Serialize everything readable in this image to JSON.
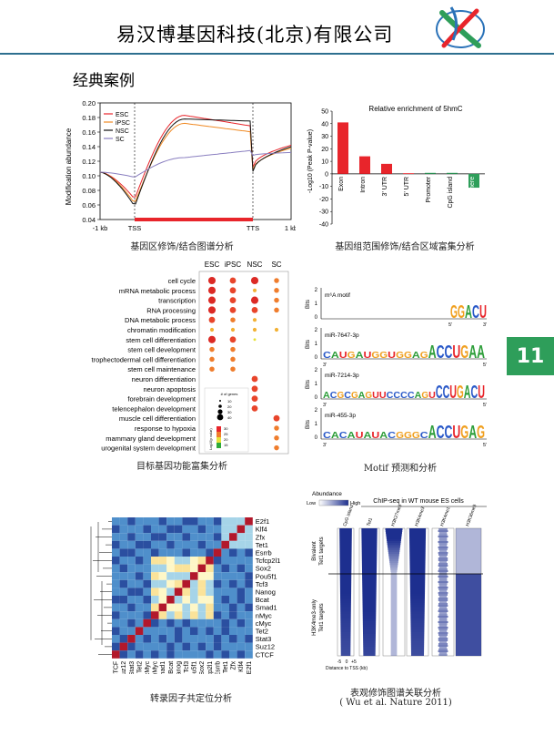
{
  "header": {
    "company": "易汉博基因科技(北京)有限公司",
    "section": "经典案例"
  },
  "page_number": "11",
  "captions": {
    "c1": "基因区修饰/结合图谱分析",
    "c2": "基因组范围修饰/结合区域富集分析",
    "c3": "目标基因功能富集分析",
    "c4": "Motif 预测和分析",
    "c5": "转录因子共定位分析",
    "c6": "表观修饰图谱关联分析",
    "c6b": "( Wu et al. Nature 2011)"
  },
  "chart_data": [
    {
      "type": "line",
      "title": "",
      "ylabel": "Modification abundance",
      "ylim": [
        0.04,
        0.2
      ],
      "yticks": [
        "0.20",
        "0.18",
        "0.16",
        "0.14",
        "0.12",
        "0.10",
        "0.08",
        "0.06",
        "0.04"
      ],
      "xticks": [
        "-1 kb",
        "TSS",
        "TTS",
        "1 kb"
      ],
      "series": [
        {
          "name": "ESC",
          "color": "#e8252b"
        },
        {
          "name": "iPSC",
          "color": "#f08a24"
        },
        {
          "name": "NSC",
          "color": "#111111"
        },
        {
          "name": "SC",
          "color": "#8a7fc0"
        }
      ]
    },
    {
      "type": "bar",
      "title": "Relative enrichment of 5hmC",
      "ylabel": "-Log10 (Peak P-value)",
      "ylim": [
        -40,
        50
      ],
      "yticks": [
        "50",
        "40",
        "30",
        "20",
        "10",
        "0",
        "-10",
        "-20",
        "-30",
        "-40"
      ],
      "categories": [
        "Exon",
        "Intron",
        "3' UTR",
        "5' UTR",
        "Promoter",
        "CpG island",
        "Centromere"
      ],
      "values": [
        41,
        14,
        8,
        0.5,
        0.8,
        0.8,
        -11
      ],
      "colors": [
        "#e8252b",
        "#e8252b",
        "#e8252b",
        "#e8252b",
        "#2e9e5a",
        "#2e9e5a",
        "#2e9e5a"
      ]
    },
    {
      "type": "scatter",
      "columns": [
        "ESC",
        "iPSC",
        "NSC",
        "SC"
      ],
      "rows": [
        "cell cycle",
        "mRNA metabolic process",
        "transcription",
        "RNA processing",
        "DNA metabolic process",
        "chromatin modification",
        "stem cell differentiation",
        "stem cell development",
        "trophectodermal cell differentiation",
        "stem cell maintenance",
        "neuron differentiation",
        "neuron apoptosis",
        "forebrain development",
        "telencephalon development",
        "muscle cell differentiation",
        "response to hypoxia",
        "mammary gland development",
        "urogenital system development"
      ],
      "legend_size_title": "# of genes",
      "legend_size": [
        "10",
        "20",
        "30",
        "40"
      ],
      "legend_color_title": "Log10(p value)",
      "legend_color": [
        "30",
        "25",
        "20",
        "15"
      ]
    },
    {
      "type": "table",
      "title": "",
      "motifs": [
        {
          "name": "m⁶A motif",
          "seq": "GGACU",
          "xlabel_left": "5'",
          "xlabel_right": "3'"
        },
        {
          "name": "miR-7647-3p",
          "seq": "CAUGAUGGUGGAGACCUGAA",
          "xlabel_left": "3'",
          "xlabel_right": "5'"
        },
        {
          "name": "miR-7214-3p",
          "seq": "ACGCGAGUUCCCCAGUCCUGACU",
          "xlabel_left": "3'",
          "xlabel_right": "5'"
        },
        {
          "name": "miR-455-3p",
          "seq": "CACAUAUACGGGCACCUGAG",
          "xlabel_left": "3'",
          "xlabel_right": "5'"
        }
      ],
      "ylabel": "Bits"
    },
    {
      "type": "heatmap",
      "rows": [
        "E2f1",
        "Klf4",
        "Zfx",
        "Tet1",
        "Esrrb",
        "Tcfcp2l1",
        "Sox2",
        "Pou5f1",
        "Tcf3",
        "Nanog",
        "Bcat",
        "Smad1",
        "nMyc",
        "cMyc",
        "Tet2",
        "Stat3",
        "Suz12",
        "CTCF"
      ],
      "columns": [
        "CTCF",
        "Suz12",
        "Stat3",
        "Tet2",
        "cMyc",
        "nMyc",
        "Smad1",
        "Bcat",
        "Nanog",
        "Tcf3",
        "Pou5f1",
        "Sox2",
        "Tcfcp2l1",
        "Esrrb",
        "Tet1",
        "Zfx",
        "Klf4",
        "E2f1"
      ]
    },
    {
      "type": "heatmap",
      "title": "ChIP-seq in WT mouse ES cells",
      "legend_title": "Abundance",
      "legend_low": "Low",
      "legend_high": "High",
      "columns": [
        "CpG island",
        "Tet1",
        "H3K27me3",
        "H3K4me3",
        "H3K4me1",
        "H3K36me3"
      ],
      "row_groups": [
        "Bivalent Tet1 targets",
        "H3K4me3-only Tet1 targets"
      ],
      "xticks": [
        "-5",
        "0",
        "+5"
      ],
      "xlabel": "Distance to TSS (kb)"
    }
  ]
}
